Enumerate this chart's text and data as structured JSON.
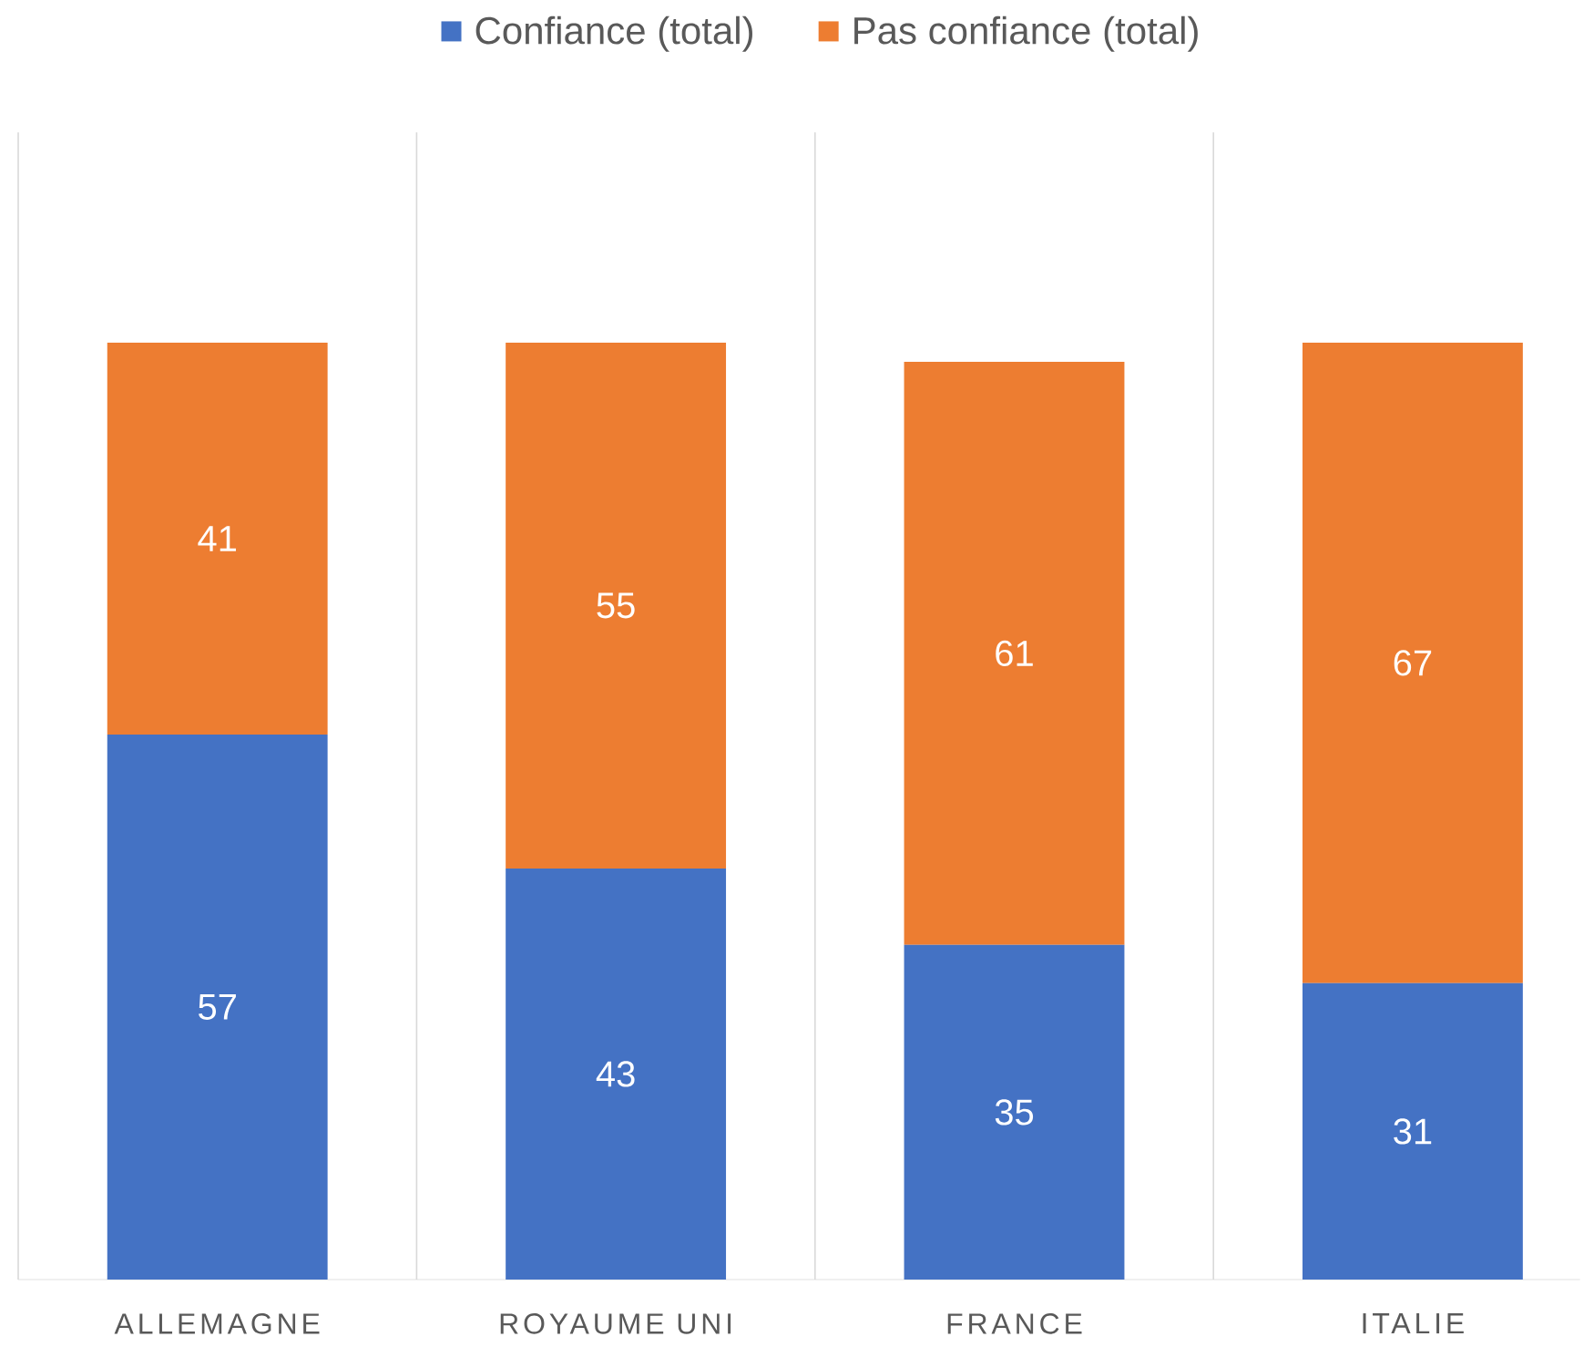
{
  "chart_data": {
    "type": "bar",
    "stacked": true,
    "categories": [
      "ALLEMAGNE",
      "ROYAUME UNI",
      "FRANCE",
      "ITALIE"
    ],
    "series": [
      {
        "name": "Confiance (total)",
        "color": "#4472c4",
        "values": [
          57,
          43,
          35,
          31
        ]
      },
      {
        "name": "Pas confiance (total)",
        "color": "#ed7d31",
        "values": [
          41,
          55,
          61,
          67
        ]
      }
    ],
    "tick_labels": "x",
    "data_labels": true,
    "legend": "top",
    "grid": "x"
  }
}
